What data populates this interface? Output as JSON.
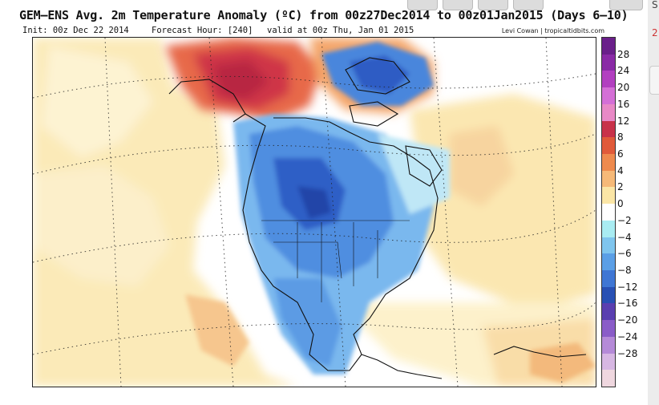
{
  "header": {
    "title": "GEM–ENS Avg. 2m Temperature Anomaly (ºC) from 00z27Dec2014 to 00z01Jan2015 (Days 6–10)",
    "init": "Init: 00z Dec 22 2014",
    "forecast_hour": "Forecast Hour: [240]",
    "valid": "valid at 00z Thu, Jan 01 2015",
    "credit": "Levi Cowan | tropicaltidbits.com"
  },
  "legend": {
    "labels": [
      "28",
      "24",
      "20",
      "16",
      "12",
      "8",
      "6",
      "4",
      "2",
      "0",
      "−2",
      "−4",
      "−6",
      "−8",
      "−12",
      "−16",
      "−20",
      "−24",
      "−28"
    ],
    "colors": [
      "#6a1f8a",
      "#8a2aa6",
      "#b23fc0",
      "#d46fd6",
      "#e889c6",
      "#c8324a",
      "#e05a3a",
      "#ee8a4e",
      "#f6b978",
      "#fbe6a6",
      "#ffffff",
      "#a9ecf2",
      "#7fc5ee",
      "#5b9fe6",
      "#3f76d4",
      "#2850b4",
      "#5a3fb0",
      "#8a5cc8",
      "#b58ad8",
      "#d7b7e3",
      "#efd7df"
    ]
  },
  "side": {
    "label_top": "S",
    "label_red": "2"
  }
}
